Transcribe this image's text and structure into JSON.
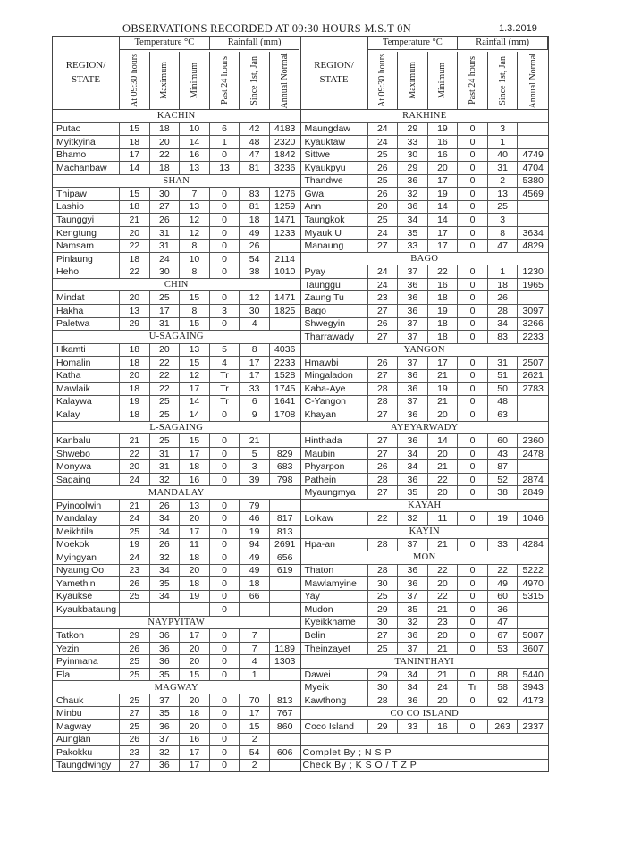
{
  "title": "OBSERVATIONS RECORDED AT 09:30 HOURS M.S.T 0N",
  "date": "1.3.2019",
  "header": {
    "region": "REGION/ STATE",
    "temperature": "Temperature °C",
    "rainfall": "Rainfall (mm)",
    "columns": [
      "At 09:30 hours",
      "Maximum",
      "Minimum",
      "Past 24 hours",
      "Since 1st, Jan",
      "Annual Normal"
    ]
  },
  "left": {
    "sections": [
      {
        "name": "KACHIN",
        "rows": [
          [
            "Putao",
            "15",
            "18",
            "10",
            "6",
            "42",
            "4183"
          ],
          [
            "Myitkyina",
            "18",
            "20",
            "14",
            "1",
            "48",
            "2320"
          ],
          [
            "Bhamo",
            "17",
            "22",
            "16",
            "0",
            "47",
            "1842"
          ],
          [
            "Machanbaw",
            "14",
            "18",
            "13",
            "13",
            "81",
            "3236"
          ]
        ]
      },
      {
        "name": "SHAN",
        "rows": [
          [
            "Thipaw",
            "15",
            "30",
            "7",
            "0",
            "83",
            "1276"
          ],
          [
            "Lashio",
            "18",
            "27",
            "13",
            "0",
            "81",
            "1259"
          ],
          [
            "Taunggyi",
            "21",
            "26",
            "12",
            "0",
            "18",
            "1471"
          ],
          [
            "Kengtung",
            "20",
            "31",
            "12",
            "0",
            "49",
            "1233"
          ],
          [
            "Namsam",
            "22",
            "31",
            "8",
            "0",
            "26",
            ""
          ],
          [
            "Pinlaung",
            "18",
            "24",
            "10",
            "0",
            "54",
            "2114"
          ],
          [
            "Heho",
            "22",
            "30",
            "8",
            "0",
            "38",
            "1010"
          ]
        ]
      },
      {
        "name": "CHIN",
        "rows": [
          [
            "Mindat",
            "20",
            "25",
            "15",
            "0",
            "12",
            "1471"
          ],
          [
            "Hakha",
            "13",
            "17",
            "8",
            "3",
            "30",
            "1825"
          ],
          [
            "Paletwa",
            "29",
            "31",
            "15",
            "0",
            "4",
            ""
          ]
        ]
      },
      {
        "name": "U-SAGAING",
        "rows": [
          [
            "Hkamti",
            "18",
            "20",
            "13",
            "5",
            "8",
            "4036"
          ],
          [
            "Homalin",
            "18",
            "22",
            "15",
            "4",
            "17",
            "2233"
          ],
          [
            "Katha",
            "20",
            "22",
            "12",
            "Tr",
            "17",
            "1528"
          ],
          [
            "Mawlaik",
            "18",
            "22",
            "17",
            "Tr",
            "33",
            "1745"
          ],
          [
            "Kalaywa",
            "19",
            "25",
            "14",
            "Tr",
            "6",
            "1641"
          ],
          [
            "Kalay",
            "18",
            "25",
            "14",
            "0",
            "9",
            "1708"
          ]
        ]
      },
      {
        "name": "L-SAGAING",
        "rows": [
          [
            "Kanbalu",
            "21",
            "25",
            "15",
            "0",
            "21",
            ""
          ],
          [
            "Shwebo",
            "22",
            "31",
            "17",
            "0",
            "5",
            "829"
          ],
          [
            "Monywa",
            "20",
            "31",
            "18",
            "0",
            "3",
            "683"
          ],
          [
            "Sagaing",
            "24",
            "32",
            "16",
            "0",
            "39",
            "798"
          ]
        ]
      },
      {
        "name": "MANDALAY",
        "rows": [
          [
            "Pyinoolwin",
            "21",
            "26",
            "13",
            "0",
            "79",
            ""
          ],
          [
            "Mandalay",
            "24",
            "34",
            "20",
            "0",
            "46",
            "817"
          ],
          [
            "Meikhtila",
            "25",
            "34",
            "17",
            "0",
            "19",
            "813"
          ],
          [
            "Moekok",
            "19",
            "26",
            "11",
            "0",
            "94",
            "2691"
          ],
          [
            "Myingyan",
            "24",
            "32",
            "18",
            "0",
            "49",
            "656"
          ],
          [
            "Nyaung Oo",
            "23",
            "34",
            "20",
            "0",
            "49",
            "619"
          ],
          [
            "Yamethin",
            "26",
            "35",
            "18",
            "0",
            "18",
            ""
          ],
          [
            "Kyaukse",
            "25",
            "34",
            "19",
            "0",
            "66",
            ""
          ],
          [
            "Kyaukbataung",
            "",
            "",
            "",
            "0",
            "",
            ""
          ]
        ]
      },
      {
        "name": "NAYPYITAW",
        "rows": [
          [
            "Tatkon",
            "29",
            "36",
            "17",
            "0",
            "7",
            ""
          ],
          [
            "Yezin",
            "26",
            "36",
            "20",
            "0",
            "7",
            "1189"
          ],
          [
            "Pyinmana",
            "25",
            "36",
            "20",
            "0",
            "4",
            "1303"
          ],
          [
            "Ela",
            "25",
            "35",
            "15",
            "0",
            "1",
            ""
          ]
        ]
      },
      {
        "name": "MAGWAY",
        "rows": [
          [
            "Chauk",
            "25",
            "37",
            "20",
            "0",
            "70",
            "813"
          ],
          [
            "Minbu",
            "27",
            "35",
            "18",
            "0",
            "17",
            "767"
          ],
          [
            "Magway",
            "25",
            "36",
            "20",
            "0",
            "15",
            "860"
          ],
          [
            "Aunglan",
            "26",
            "37",
            "16",
            "0",
            "2",
            ""
          ],
          [
            "Pakokku",
            "23",
            "32",
            "17",
            "0",
            "54",
            "606"
          ],
          [
            "Taungdwingy",
            "27",
            "36",
            "17",
            "0",
            "2",
            ""
          ]
        ]
      }
    ]
  },
  "right": {
    "sections": [
      {
        "name": "RAKHINE",
        "rows": [
          [
            "Maungdaw",
            "24",
            "29",
            "19",
            "0",
            "3",
            ""
          ],
          [
            "Kyauktaw",
            "24",
            "33",
            "16",
            "0",
            "1",
            ""
          ],
          [
            "Sittwe",
            "25",
            "30",
            "16",
            "0",
            "40",
            "4749"
          ],
          [
            "Kyaukpyu",
            "26",
            "29",
            "20",
            "0",
            "31",
            "4704"
          ],
          [
            "Thandwe",
            "25",
            "36",
            "17",
            "0",
            "2",
            "5380"
          ],
          [
            "Gwa",
            "26",
            "32",
            "19",
            "0",
            "13",
            "4569"
          ],
          [
            "Ann",
            "20",
            "36",
            "14",
            "0",
            "25",
            ""
          ],
          [
            "Taungkok",
            "25",
            "34",
            "14",
            "0",
            "3",
            ""
          ],
          [
            "Myauk U",
            "24",
            "35",
            "17",
            "0",
            "8",
            "3634"
          ],
          [
            "Manaung",
            "27",
            "33",
            "17",
            "0",
            "47",
            "4829"
          ]
        ]
      },
      {
        "name": "BAGO",
        "rows": [
          [
            "Pyay",
            "24",
            "37",
            "22",
            "0",
            "1",
            "1230"
          ],
          [
            "Taunggu",
            "24",
            "36",
            "16",
            "0",
            "18",
            "1965"
          ],
          [
            "Zaung Tu",
            "23",
            "36",
            "18",
            "0",
            "26",
            ""
          ],
          [
            "Bago",
            "27",
            "36",
            "19",
            "0",
            "28",
            "3097"
          ],
          [
            "Shwegyin",
            "26",
            "37",
            "18",
            "0",
            "34",
            "3266"
          ],
          [
            "Tharrawady",
            "27",
            "37",
            "18",
            "0",
            "83",
            "2233"
          ]
        ]
      },
      {
        "name": "YANGON",
        "rows": [
          [
            "Hmawbi",
            "26",
            "37",
            "17",
            "0",
            "31",
            "2507"
          ],
          [
            "Mingaladon",
            "27",
            "36",
            "21",
            "0",
            "51",
            "2621"
          ],
          [
            "Kaba-Aye",
            "28",
            "36",
            "19",
            "0",
            "50",
            "2783"
          ],
          [
            "C-Yangon",
            "28",
            "37",
            "21",
            "0",
            "48",
            ""
          ],
          [
            "Khayan",
            "27",
            "36",
            "20",
            "0",
            "63",
            ""
          ]
        ]
      },
      {
        "name": "AYEYARWADY",
        "rows": [
          [
            "Hinthada",
            "27",
            "36",
            "14",
            "0",
            "60",
            "2360"
          ],
          [
            "Maubin",
            "27",
            "34",
            "20",
            "0",
            "43",
            "2478"
          ],
          [
            "Phyarpon",
            "26",
            "34",
            "21",
            "0",
            "87",
            ""
          ],
          [
            "Pathein",
            "28",
            "36",
            "22",
            "0",
            "52",
            "2874"
          ],
          [
            "Myaungmya",
            "27",
            "35",
            "20",
            "0",
            "38",
            "2849"
          ]
        ]
      },
      {
        "name": "KAYAH",
        "rows": [
          [
            "Loikaw",
            "22",
            "32",
            "11",
            "0",
            "19",
            "1046"
          ]
        ]
      },
      {
        "name": "KAYIN",
        "rows": [
          [
            "Hpa-an",
            "28",
            "37",
            "21",
            "0",
            "33",
            "4284"
          ]
        ]
      },
      {
        "name": "MON",
        "rows": [
          [
            "Thaton",
            "28",
            "36",
            "22",
            "0",
            "22",
            "5222"
          ],
          [
            "Mawlamyine",
            "30",
            "36",
            "20",
            "0",
            "49",
            "4970"
          ],
          [
            "Yay",
            "25",
            "37",
            "22",
            "0",
            "60",
            "5315"
          ],
          [
            "Mudon",
            "29",
            "35",
            "21",
            "0",
            "36",
            ""
          ],
          [
            "Kyeikkhame",
            "30",
            "32",
            "23",
            "0",
            "47",
            ""
          ],
          [
            "Belin",
            "27",
            "36",
            "20",
            "0",
            "67",
            "5087"
          ],
          [
            "Theinzayet",
            "25",
            "37",
            "21",
            "0",
            "53",
            "3607"
          ]
        ]
      },
      {
        "name": "TANINTHAYI",
        "rows": [
          [
            "Dawei",
            "29",
            "34",
            "21",
            "0",
            "88",
            "5440"
          ],
          [
            "Myeik",
            "30",
            "34",
            "24",
            "Tr",
            "58",
            "3943"
          ],
          [
            "Kawthong",
            "28",
            "36",
            "20",
            "0",
            "92",
            "4173"
          ]
        ]
      },
      {
        "name": "CO CO  ISLAND",
        "rows": [
          [
            "Coco  Island",
            "29",
            "33",
            "16",
            "0",
            "263",
            "2337"
          ]
        ]
      }
    ],
    "notes": [
      "",
      "Complet By ;    N S P",
      "Check By ;  K S O  / T Z P"
    ]
  }
}
